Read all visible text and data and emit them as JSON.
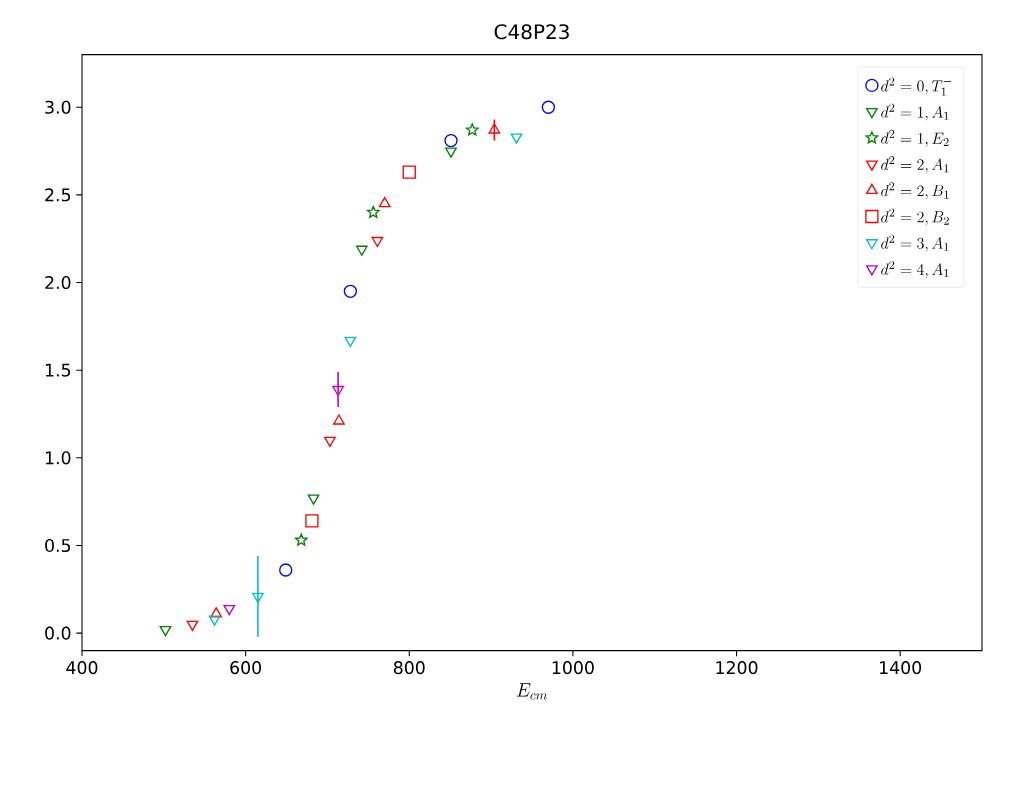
{
  "chart_data": {
    "type": "scatter",
    "title": "C48P23",
    "xlabel": "E_{cm}",
    "xlim": [
      400,
      1500
    ],
    "ylim": [
      -0.1,
      3.3
    ],
    "xticks": [
      400,
      600,
      800,
      1000,
      1200,
      1400
    ],
    "yticks": [
      {
        "value": 0,
        "label": "0.0"
      },
      0.5,
      {
        "value": 1,
        "label": "1.0"
      },
      1.5,
      {
        "value": 2,
        "label": "2.0"
      },
      2.5,
      {
        "value": 3,
        "label": "3.0"
      }
    ],
    "legend": "top right",
    "grid": false,
    "series": [
      {
        "name": "d^2=0,T_1^-",
        "color": "#0000ff",
        "marker": "circle",
        "x": [
          649,
          728,
          851,
          970
        ],
        "values": [
          0.36,
          1.95,
          2.81,
          3.0
        ]
      },
      {
        "name": "d^2=1,A_1",
        "color": "#008000",
        "marker": "triangle_down",
        "x": [
          502,
          683,
          742,
          851
        ],
        "values": [
          0.02,
          0.77,
          2.19,
          2.75
        ]
      },
      {
        "name": "d^2=1,E_2",
        "color": "#008000",
        "marker": "star",
        "x": [
          668,
          756,
          877
        ],
        "values": [
          0.53,
          2.4,
          2.87
        ]
      },
      {
        "name": "d^2=2,A_1",
        "color": "#ff0000",
        "marker": "triangle_down",
        "x": [
          535,
          703,
          761
        ],
        "values": [
          0.05,
          1.1,
          2.24
        ]
      },
      {
        "name": "d^2=2,B_1",
        "color": "#ff0000",
        "marker": "triangle",
        "x": [
          564,
          714,
          770,
          904
        ],
        "values": [
          0.11,
          1.21,
          2.45,
          2.87
        ],
        "errors": [
          null,
          null,
          null,
          0.06
        ]
      },
      {
        "name": "d^2=2,B_2",
        "color": "#ff0000",
        "marker": "square",
        "x": [
          681,
          800
        ],
        "values": [
          0.64,
          2.63
        ]
      },
      {
        "name": "d^2=3,A_1",
        "color": "#00bfbf",
        "marker": "triangle_down",
        "x": [
          562,
          615,
          728,
          931
        ],
        "values": [
          0.08,
          0.21,
          1.67,
          2.83
        ],
        "errors": [
          null,
          0.23,
          null,
          null
        ]
      },
      {
        "name": "d^2=4,A_1",
        "color": "#bf00bf",
        "marker": "triangle_down",
        "x": [
          580,
          713
        ],
        "values": [
          0.14,
          1.39
        ],
        "errors": [
          null,
          0.1
        ]
      }
    ]
  }
}
